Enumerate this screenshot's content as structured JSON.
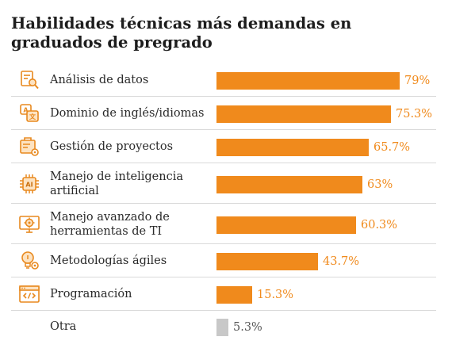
{
  "title": "Habilidades técnicas más demandas en graduados de pregrado",
  "colors": {
    "accent": "#f08a1c",
    "other": "#c8c8c8",
    "other_text": "#555555",
    "line": "#d9d9d9"
  },
  "chart_data": {
    "type": "bar",
    "orientation": "horizontal",
    "title": "Habilidades técnicas más demandas en graduados de pregrado",
    "unit": "%",
    "xlim": [
      0,
      79
    ],
    "rows": [
      {
        "label": "Análisis de datos",
        "value": 79,
        "display": "79%",
        "icon": "data-analysis-icon",
        "highlight": true
      },
      {
        "label": "Dominio de inglés/idiomas",
        "value": 75.3,
        "display": "75.3%",
        "icon": "translate-icon",
        "highlight": true
      },
      {
        "label": "Gestión de proyectos",
        "value": 65.7,
        "display": "65.7%",
        "icon": "project-management-icon",
        "highlight": true
      },
      {
        "label": "Manejo de inteligencia artificial",
        "value": 63,
        "display": "63%",
        "icon": "ai-chip-icon",
        "highlight": true
      },
      {
        "label": "Manejo avanzado de herramientas de TI",
        "value": 60.3,
        "display": "60.3%",
        "icon": "it-tools-icon",
        "highlight": true
      },
      {
        "label": "Metodologías ágiles",
        "value": 43.7,
        "display": "43.7%",
        "icon": "agile-lightbulb-icon",
        "highlight": true
      },
      {
        "label": "Programación",
        "value": 15.3,
        "display": "15.3%",
        "icon": "code-window-icon",
        "highlight": true
      },
      {
        "label": "Otra",
        "value": 5.3,
        "display": "5.3%",
        "icon": "",
        "highlight": false
      }
    ]
  }
}
